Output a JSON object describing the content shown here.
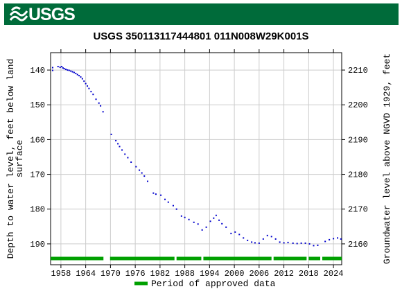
{
  "header": {
    "logo_text": "USGS",
    "banner_color": "#006b3a"
  },
  "chart_data": {
    "type": "scatter",
    "title": "USGS 350113117444801 011N008W29K001S",
    "ylabel_left": "Depth to water level, feet below land surface",
    "ylabel_left_lines": [
      "Depth to water level, feet below land",
      "surface"
    ],
    "ylabel_right": "Groundwater level above NGVD 1929, feet",
    "x_range": [
      1955.5,
      2026.0
    ],
    "x_ticks": [
      "1958",
      "1964",
      "1970",
      "1976",
      "1982",
      "1988",
      "1994",
      "2000",
      "2006",
      "2012",
      "2018",
      "2024"
    ],
    "ylim_left": [
      196,
      135
    ],
    "yticks_left": [
      "140",
      "150",
      "160",
      "170",
      "180",
      "190"
    ],
    "yticks_right": [
      "2210",
      "2200",
      "2190",
      "2180",
      "2170",
      "2160"
    ],
    "datum_offset_ft": 2350,
    "point_color": "#0000cc",
    "approved_color": "#00a000",
    "legend": {
      "label": "Period of approved data",
      "position": "bottom-center"
    },
    "grid": true,
    "points": [
      [
        1956.0,
        139.3
      ],
      [
        1956.0,
        140.1
      ],
      [
        1957.3,
        139.0
      ],
      [
        1957.8,
        139.2
      ],
      [
        1958.2,
        139.0
      ],
      [
        1958.5,
        139.4
      ],
      [
        1958.8,
        139.6
      ],
      [
        1959.2,
        139.8
      ],
      [
        1959.6,
        140.0
      ],
      [
        1960.0,
        140.1
      ],
      [
        1960.4,
        140.3
      ],
      [
        1960.8,
        140.5
      ],
      [
        1961.2,
        140.7
      ],
      [
        1961.6,
        141.0
      ],
      [
        1962.0,
        141.3
      ],
      [
        1962.4,
        141.6
      ],
      [
        1962.8,
        142.0
      ],
      [
        1963.2,
        142.5
      ],
      [
        1963.6,
        143.2
      ],
      [
        1964.0,
        143.9
      ],
      [
        1964.4,
        144.6
      ],
      [
        1964.8,
        145.3
      ],
      [
        1965.3,
        146.2
      ],
      [
        1965.8,
        147.0
      ],
      [
        1966.5,
        148.4
      ],
      [
        1967.2,
        149.5
      ],
      [
        1967.6,
        150.3
      ],
      [
        1968.2,
        152.0
      ],
      [
        1970.2,
        158.5
      ],
      [
        1971.3,
        160.3
      ],
      [
        1971.8,
        161.2
      ],
      [
        1972.2,
        162.0
      ],
      [
        1972.8,
        163.0
      ],
      [
        1973.5,
        164.2
      ],
      [
        1974.2,
        165.2
      ],
      [
        1975.0,
        166.5
      ],
      [
        1976.2,
        167.8
      ],
      [
        1977.0,
        168.8
      ],
      [
        1977.6,
        169.6
      ],
      [
        1978.2,
        170.5
      ],
      [
        1979.0,
        172.0
      ],
      [
        1980.4,
        175.4
      ],
      [
        1981.0,
        175.7
      ],
      [
        1982.2,
        176.0
      ],
      [
        1983.2,
        177.2
      ],
      [
        1984.0,
        178.0
      ],
      [
        1985.2,
        179.0
      ],
      [
        1986.0,
        180.0
      ],
      [
        1987.2,
        182.0
      ],
      [
        1988.0,
        182.4
      ],
      [
        1989.0,
        183.0
      ],
      [
        1990.2,
        183.8
      ],
      [
        1991.2,
        184.3
      ],
      [
        1992.2,
        186.0
      ],
      [
        1993.2,
        185.2
      ],
      [
        1994.2,
        183.5
      ],
      [
        1995.0,
        182.6
      ],
      [
        1995.6,
        181.8
      ],
      [
        1996.3,
        183.2
      ],
      [
        1997.0,
        184.2
      ],
      [
        1998.0,
        185.2
      ],
      [
        1999.2,
        187.0
      ],
      [
        2000.2,
        186.6
      ],
      [
        2001.2,
        187.3
      ],
      [
        2002.2,
        188.3
      ],
      [
        2003.2,
        189.0
      ],
      [
        2004.2,
        189.5
      ],
      [
        2005.0,
        189.7
      ],
      [
        2006.0,
        189.8
      ],
      [
        2007.0,
        188.6
      ],
      [
        2008.0,
        187.6
      ],
      [
        2009.0,
        187.9
      ],
      [
        2010.0,
        188.6
      ],
      [
        2011.0,
        189.5
      ],
      [
        2012.0,
        189.7
      ],
      [
        2013.0,
        189.6
      ],
      [
        2014.2,
        189.8
      ],
      [
        2015.2,
        189.9
      ],
      [
        2016.2,
        189.8
      ],
      [
        2017.2,
        189.8
      ],
      [
        2018.2,
        190.0
      ],
      [
        2019.2,
        190.5
      ],
      [
        2020.2,
        190.4
      ],
      [
        2022.0,
        189.3
      ],
      [
        2023.0,
        188.8
      ],
      [
        2024.0,
        188.5
      ],
      [
        2025.0,
        188.3
      ],
      [
        2025.8,
        188.6
      ]
    ],
    "approved_segments": [
      [
        1955.5,
        1968.3
      ],
      [
        1969.9,
        1985.5
      ],
      [
        1986.0,
        1992.0
      ],
      [
        1992.5,
        2009.0
      ],
      [
        2009.5,
        2017.5
      ],
      [
        2018.0,
        2020.8
      ],
      [
        2021.3,
        2026.0
      ]
    ]
  }
}
